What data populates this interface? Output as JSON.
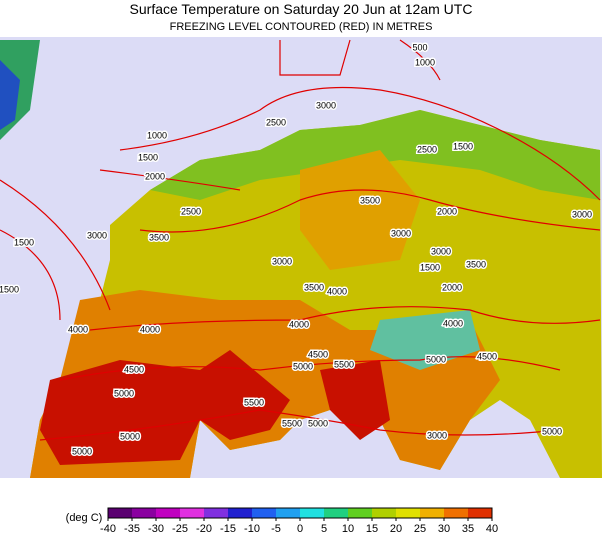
{
  "header": {
    "title": "Surface Temperature on Saturday 20 Jun at 12am UTC",
    "subtitle": "FREEZING LEVEL CONTOURED (RED) IN METRES"
  },
  "map": {
    "contour_labels": [
      "500",
      "1000",
      "3000",
      "2500",
      "1000",
      "1500",
      "2000",
      "2500",
      "1500",
      "3500",
      "2500",
      "3000",
      "3500",
      "1500",
      "2000",
      "3000",
      "3000",
      "3000",
      "3000",
      "1500",
      "3500",
      "1500",
      "3500",
      "4000",
      "2000",
      "4000",
      "4000",
      "4000",
      "4000",
      "4500",
      "5000",
      "5500",
      "5000",
      "4500",
      "4500",
      "5000",
      "5500",
      "5500",
      "5000",
      "5000",
      "5000",
      "3000",
      "5000"
    ]
  },
  "legend": {
    "unit_label": "(deg C)",
    "ticks": [
      -40,
      -35,
      -30,
      -25,
      -20,
      -15,
      -10,
      -5,
      0,
      5,
      10,
      15,
      20,
      25,
      30,
      35,
      40
    ],
    "colors": [
      "#5a0070",
      "#8a00a0",
      "#c000c0",
      "#e030e0",
      "#8030e0",
      "#2020d0",
      "#2060f0",
      "#20a0f0",
      "#20e0e0",
      "#20d080",
      "#60d020",
      "#b0d000",
      "#e0e000",
      "#f0b000",
      "#f07000",
      "#e03000"
    ]
  }
}
